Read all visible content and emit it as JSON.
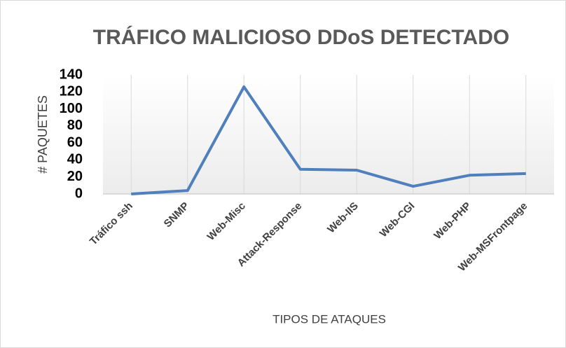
{
  "chart_data": {
    "type": "line",
    "title": "TRÁFICO MALICIOSO DDoS DETECTADO",
    "x_label": "TIPOS DE ATAQUES",
    "y_label": "# PAQUETES",
    "categories": [
      "Tráfico ssh",
      "SNMP",
      "Web-Misc",
      "Attack-Response",
      "Web-IIS",
      "Web-CGI",
      "Web-PHP",
      "Web-MSFrontpage"
    ],
    "series": [
      {
        "name": "Paquetes",
        "color": "#4f7fbd",
        "values": [
          0,
          4,
          126,
          29,
          28,
          9,
          22,
          24
        ]
      }
    ],
    "ylim": [
      0,
      140
    ],
    "yticks": [
      0,
      20,
      40,
      60,
      80,
      100,
      120,
      140
    ],
    "grid": true
  }
}
